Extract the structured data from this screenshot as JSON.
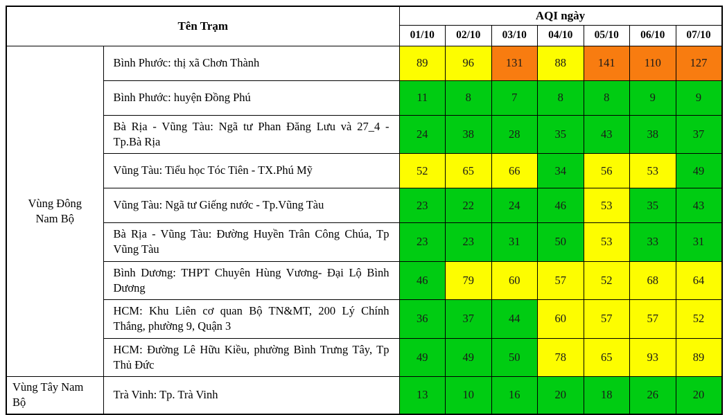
{
  "chart_data": {
    "type": "table",
    "title": "AQI ngày",
    "station_header": "Tên Trạm",
    "aqi_group_header": "AQI ngày",
    "dates": [
      "01/10",
      "02/10",
      "03/10",
      "04/10",
      "05/10",
      "06/10",
      "07/10"
    ],
    "regions": [
      {
        "name": "Vùng Đông Nam Bộ",
        "row_count": 9
      },
      {
        "name": "Vùng Tây Nam Bộ",
        "row_count": 1
      }
    ],
    "rows": [
      {
        "region": "Vùng Đông Nam Bộ",
        "station": "Bình Phước: thị xã Chơn Thành",
        "values": [
          89,
          96,
          131,
          88,
          141,
          110,
          127
        ],
        "levels": [
          "yellow",
          "yellow",
          "orange",
          "yellow",
          "orange",
          "orange",
          "orange"
        ]
      },
      {
        "region": "Vùng Đông Nam Bộ",
        "station": "Bình Phước: huyện Đồng Phú",
        "values": [
          11,
          8,
          7,
          8,
          8,
          9,
          9
        ],
        "levels": [
          "green",
          "green",
          "green",
          "green",
          "green",
          "green",
          "green"
        ]
      },
      {
        "region": "Vùng Đông Nam Bộ",
        "station": "Bà Rịa - Vũng Tàu: Ngã tư Phan Đăng Lưu và 27_4 - Tp.Bà Rịa",
        "values": [
          24,
          38,
          28,
          35,
          43,
          38,
          37
        ],
        "levels": [
          "green",
          "green",
          "green",
          "green",
          "green",
          "green",
          "green"
        ]
      },
      {
        "region": "Vùng Đông Nam Bộ",
        "station": "Vũng Tàu: Tiểu học Tóc Tiên - TX.Phú Mỹ",
        "values": [
          52,
          65,
          66,
          34,
          56,
          53,
          49
        ],
        "levels": [
          "yellow",
          "yellow",
          "yellow",
          "green",
          "yellow",
          "yellow",
          "green"
        ]
      },
      {
        "region": "Vùng Đông Nam Bộ",
        "station": "Vũng Tàu: Ngã tư Giếng nước - Tp.Vũng Tàu",
        "values": [
          23,
          22,
          24,
          46,
          53,
          35,
          43
        ],
        "levels": [
          "green",
          "green",
          "green",
          "green",
          "yellow",
          "green",
          "green"
        ]
      },
      {
        "region": "Vùng Đông Nam Bộ",
        "station": "Bà Rịa - Vũng Tàu: Đường Huyền Trân Công Chúa, Tp Vũng Tàu",
        "values": [
          23,
          23,
          31,
          50,
          53,
          33,
          31
        ],
        "levels": [
          "green",
          "green",
          "green",
          "green",
          "yellow",
          "green",
          "green"
        ]
      },
      {
        "region": "Vùng Đông Nam Bộ",
        "station": "Bình Dương: THPT Chuyên Hùng Vương- Đại Lộ Bình Dương",
        "values": [
          46,
          79,
          60,
          57,
          52,
          68,
          64
        ],
        "levels": [
          "green",
          "yellow",
          "yellow",
          "yellow",
          "yellow",
          "yellow",
          "yellow"
        ]
      },
      {
        "region": "Vùng Đông Nam Bộ",
        "station": "HCM: Khu Liên cơ quan Bộ TN&MT, 200 Lý Chính Thắng, phường 9, Quận 3",
        "values": [
          36,
          37,
          44,
          60,
          57,
          57,
          52
        ],
        "levels": [
          "green",
          "green",
          "green",
          "yellow",
          "yellow",
          "yellow",
          "yellow"
        ]
      },
      {
        "region": "Vùng Đông Nam Bộ",
        "station": "HCM: Đường Lê Hữu Kiều, phường Bình Trưng Tây, Tp Thủ Đức",
        "values": [
          49,
          49,
          50,
          78,
          65,
          93,
          89
        ],
        "levels": [
          "green",
          "green",
          "green",
          "yellow",
          "yellow",
          "yellow",
          "yellow"
        ]
      },
      {
        "region": "Vùng Tây Nam Bộ",
        "station": "Trà Vinh: Tp. Trà Vinh",
        "values": [
          13,
          10,
          16,
          20,
          18,
          26,
          20
        ],
        "levels": [
          "green",
          "green",
          "green",
          "green",
          "green",
          "green",
          "green"
        ]
      }
    ],
    "level_colors": {
      "green": "#00CC12",
      "yellow": "#FDFD00",
      "orange": "#F87C10"
    }
  }
}
